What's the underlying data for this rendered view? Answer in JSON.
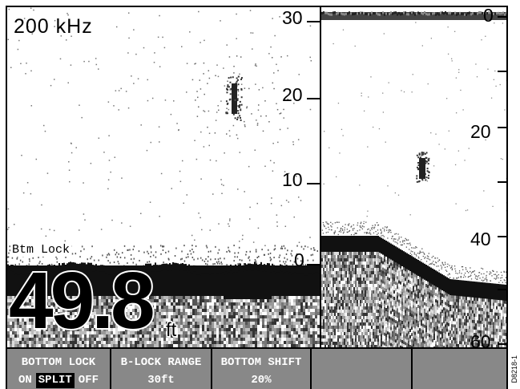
{
  "left_display": {
    "frequency": "200 kHz",
    "mode_label": "Btm Lock",
    "depth_value": "49.8",
    "depth_unit": "ft",
    "scale_labels": [
      "30",
      "20",
      "10",
      "0"
    ]
  },
  "right_display": {
    "scale_labels": [
      "0",
      "20",
      "40",
      "60"
    ]
  },
  "softkeys": {
    "bottom_lock": {
      "title": "BOTTOM LOCK",
      "options": [
        "ON",
        "SPLIT",
        "OFF"
      ],
      "selected": "SPLIT"
    },
    "b_lock_range": {
      "title": "B-LOCK RANGE",
      "value": "30ft"
    },
    "bottom_shift": {
      "title": "BOTTOM SHIFT",
      "value": "20%"
    },
    "empty1": {
      "title": ""
    },
    "empty2": {
      "title": ""
    }
  },
  "figure_code": "D8218-1"
}
